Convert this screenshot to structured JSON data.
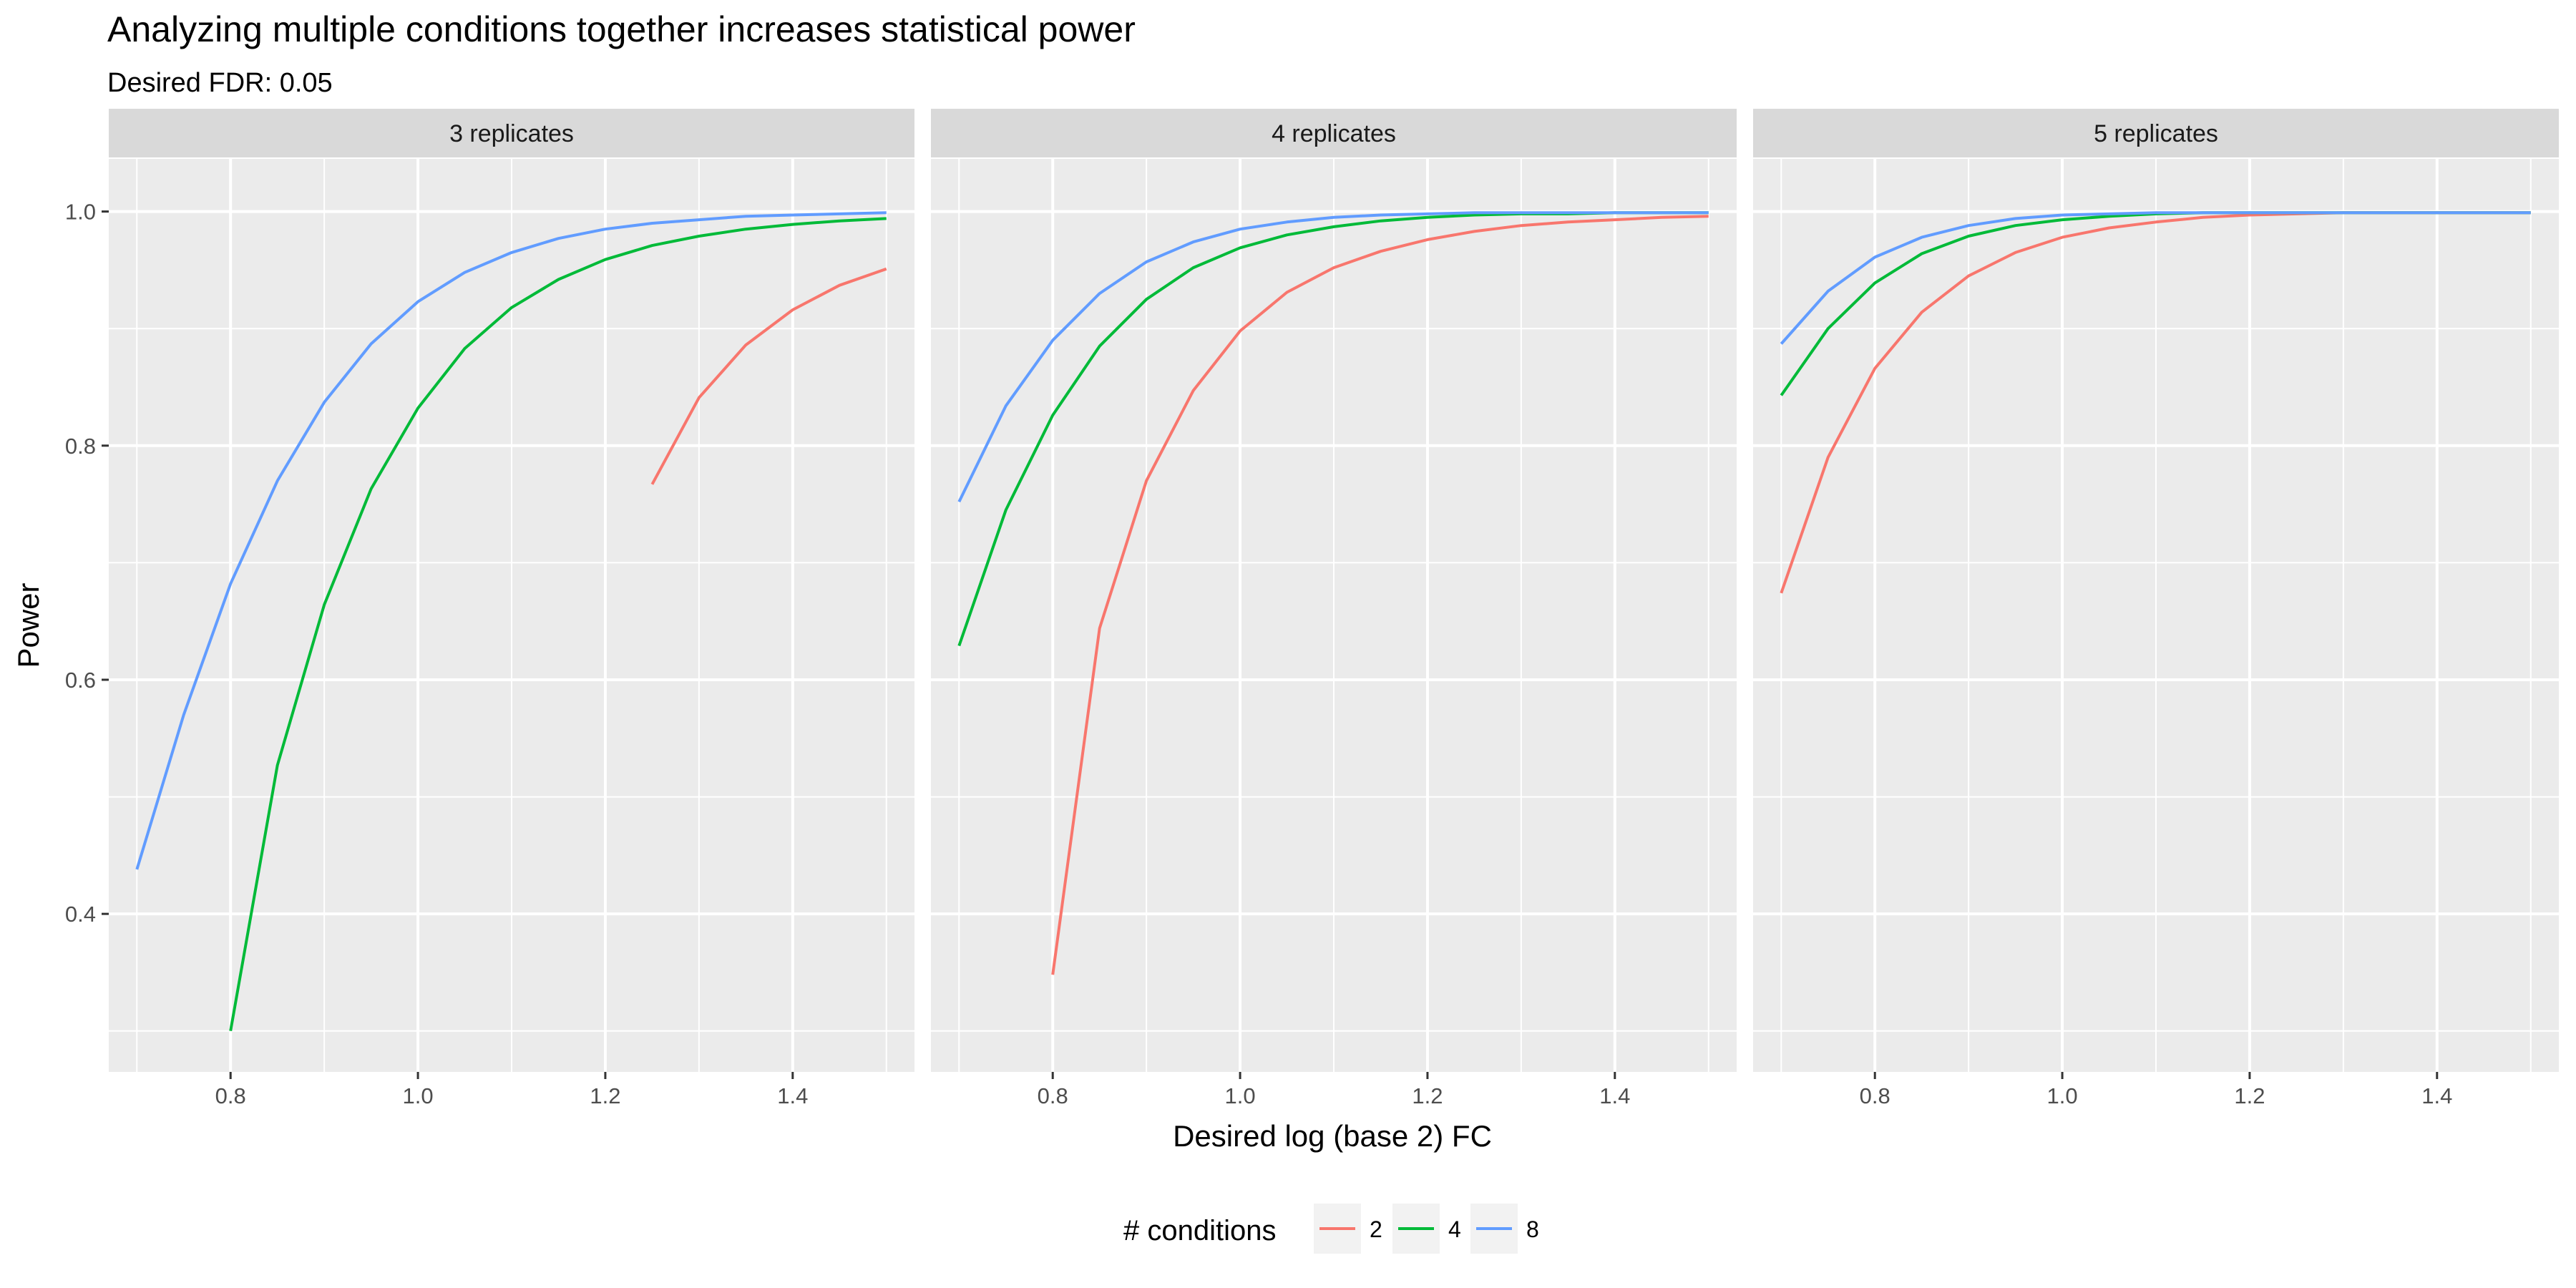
{
  "chart_data": {
    "type": "line",
    "title": "Analyzing multiple conditions together increases statistical power",
    "subtitle": "Desired FDR: 0.05",
    "xlabel": "Desired log (base 2) FC",
    "ylabel": "Power",
    "xlim": [
      0.67,
      1.53
    ],
    "ylim": [
      0.265,
      1.045
    ],
    "x_ticks": [
      0.8,
      1.0,
      1.2,
      1.4
    ],
    "x_tick_labels": [
      "0.8",
      "1.0",
      "1.2",
      "1.4"
    ],
    "y_ticks": [
      0.4,
      0.6,
      0.8,
      1.0
    ],
    "y_tick_labels": [
      "0.4",
      "0.6",
      "0.8",
      "1.0"
    ],
    "grid": true,
    "legend": {
      "title": "# conditions",
      "position": "bottom",
      "entries": [
        {
          "label": "2",
          "color": "#F8766D"
        },
        {
          "label": "4",
          "color": "#00BA38"
        },
        {
          "label": "8",
          "color": "#619CFF"
        }
      ]
    },
    "panels": [
      {
        "label": "3 replicates",
        "series": [
          {
            "name": "2",
            "color": "#F8766D",
            "x": [
              1.25,
              1.3,
              1.35,
              1.4,
              1.45,
              1.5
            ],
            "values": [
              0.767,
              0.841,
              0.886,
              0.916,
              0.937,
              0.951
            ]
          },
          {
            "name": "4",
            "color": "#00BA38",
            "x": [
              0.8,
              0.85,
              0.9,
              0.95,
              1.0,
              1.05,
              1.1,
              1.15,
              1.2,
              1.25,
              1.3,
              1.35,
              1.4,
              1.45,
              1.5
            ],
            "values": [
              0.3,
              0.527,
              0.664,
              0.763,
              0.832,
              0.883,
              0.918,
              0.942,
              0.959,
              0.971,
              0.979,
              0.985,
              0.989,
              0.992,
              0.994
            ]
          },
          {
            "name": "8",
            "color": "#619CFF",
            "x": [
              0.7,
              0.75,
              0.8,
              0.85,
              0.9,
              0.95,
              1.0,
              1.05,
              1.1,
              1.15,
              1.2,
              1.25,
              1.3,
              1.35,
              1.4,
              1.45,
              1.5
            ],
            "values": [
              0.438,
              0.57,
              0.682,
              0.77,
              0.837,
              0.887,
              0.923,
              0.948,
              0.965,
              0.977,
              0.985,
              0.99,
              0.993,
              0.996,
              0.997,
              0.998,
              0.999
            ]
          }
        ]
      },
      {
        "label": "4 replicates",
        "series": [
          {
            "name": "2",
            "color": "#F8766D",
            "x": [
              0.8,
              0.85,
              0.9,
              0.95,
              1.0,
              1.05,
              1.1,
              1.15,
              1.2,
              1.25,
              1.3,
              1.35,
              1.4,
              1.45,
              1.5
            ],
            "values": [
              0.348,
              0.644,
              0.77,
              0.847,
              0.898,
              0.931,
              0.952,
              0.966,
              0.976,
              0.983,
              0.988,
              0.991,
              0.993,
              0.995,
              0.996
            ]
          },
          {
            "name": "4",
            "color": "#00BA38",
            "x": [
              0.7,
              0.75,
              0.8,
              0.85,
              0.9,
              0.95,
              1.0,
              1.05,
              1.1,
              1.15,
              1.2,
              1.25,
              1.3,
              1.35,
              1.4,
              1.45,
              1.5
            ],
            "values": [
              0.629,
              0.745,
              0.826,
              0.885,
              0.925,
              0.952,
              0.969,
              0.98,
              0.987,
              0.992,
              0.995,
              0.997,
              0.998,
              0.998,
              0.999,
              0.999,
              0.999
            ]
          },
          {
            "name": "8",
            "color": "#619CFF",
            "x": [
              0.7,
              0.75,
              0.8,
              0.85,
              0.9,
              0.95,
              1.0,
              1.05,
              1.1,
              1.15,
              1.2,
              1.25,
              1.3,
              1.35,
              1.4,
              1.45,
              1.5
            ],
            "values": [
              0.752,
              0.834,
              0.89,
              0.93,
              0.957,
              0.974,
              0.985,
              0.991,
              0.995,
              0.997,
              0.998,
              0.999,
              0.999,
              0.999,
              0.999,
              0.999,
              0.999
            ]
          }
        ]
      },
      {
        "label": "5 replicates",
        "series": [
          {
            "name": "2",
            "color": "#F8766D",
            "x": [
              0.7,
              0.75,
              0.8,
              0.85,
              0.9,
              0.95,
              1.0,
              1.05,
              1.1,
              1.15,
              1.2,
              1.25,
              1.3,
              1.35,
              1.4,
              1.45,
              1.5
            ],
            "values": [
              0.674,
              0.79,
              0.866,
              0.914,
              0.945,
              0.965,
              0.978,
              0.986,
              0.991,
              0.995,
              0.997,
              0.998,
              0.999,
              0.999,
              0.999,
              0.999,
              0.999
            ]
          },
          {
            "name": "4",
            "color": "#00BA38",
            "x": [
              0.7,
              0.75,
              0.8,
              0.85,
              0.9,
              0.95,
              1.0,
              1.05,
              1.1,
              1.15,
              1.2,
              1.25,
              1.3,
              1.35,
              1.4,
              1.45,
              1.5
            ],
            "values": [
              0.843,
              0.9,
              0.939,
              0.964,
              0.979,
              0.988,
              0.993,
              0.996,
              0.998,
              0.999,
              0.999,
              0.999,
              0.999,
              0.999,
              0.999,
              0.999,
              0.999
            ]
          },
          {
            "name": "8",
            "color": "#619CFF",
            "x": [
              0.7,
              0.75,
              0.8,
              0.85,
              0.9,
              0.95,
              1.0,
              1.05,
              1.1,
              1.15,
              1.2,
              1.25,
              1.3,
              1.35,
              1.4,
              1.45,
              1.5
            ],
            "values": [
              0.887,
              0.932,
              0.961,
              0.978,
              0.988,
              0.994,
              0.997,
              0.998,
              0.999,
              0.999,
              0.999,
              0.999,
              0.999,
              0.999,
              0.999,
              0.999,
              0.999
            ]
          }
        ]
      }
    ]
  }
}
